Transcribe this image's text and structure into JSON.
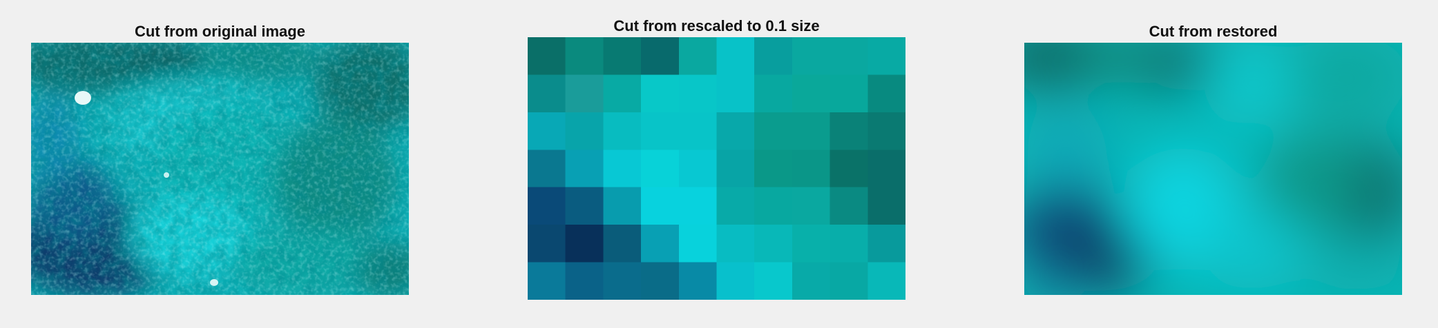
{
  "panels": [
    {
      "title": "Cut from original image"
    },
    {
      "title": "Cut from rescaled to 0.1 size"
    },
    {
      "title": "Cut from restored"
    }
  ],
  "pixel_grid": {
    "cols": 10,
    "rows": 7,
    "colors": [
      [
        "#0a6f68",
        "#0a8a7e",
        "#087a72",
        "#086a6c",
        "#0aa8a0",
        "#08c2c8",
        "#089e9e",
        "#0aa8a0",
        "#0aa8a0",
        "#08aaa4"
      ],
      [
        "#0a8c8c",
        "#1a9c9a",
        "#08aaa4",
        "#08c8c8",
        "#08c6c8",
        "#08c2c8",
        "#08a8a0",
        "#0aa89a",
        "#08a89c",
        "#088a80"
      ],
      [
        "#08a8b6",
        "#08a4aa",
        "#08bcc0",
        "#08c4c8",
        "#08c4c8",
        "#08a8aa",
        "#0a9c8e",
        "#0a9c8e",
        "#0a8278",
        "#0a7a72"
      ],
      [
        "#0a7890",
        "#08a0b4",
        "#08c8d4",
        "#08d2d8",
        "#08c8d2",
        "#08a4a6",
        "#0a9888",
        "#0a9688",
        "#0a7268",
        "#0a6e6a"
      ],
      [
        "#0a4a78",
        "#0a5c80",
        "#089cae",
        "#08d2de",
        "#08d2de",
        "#08aaa8",
        "#08a8a0",
        "#0aa8a0",
        "#0a8a82",
        "#0a6e6a"
      ],
      [
        "#0a4870",
        "#08305a",
        "#0a5c7a",
        "#08a0b4",
        "#08d2dc",
        "#08bcc2",
        "#08b8b8",
        "#08b0aa",
        "#08aeaa",
        "#089a9c"
      ],
      [
        "#0a7a9a",
        "#0a6288",
        "#0a6c8c",
        "#0a6c88",
        "#088aa6",
        "#08c0cc",
        "#08c8cc",
        "#08aaa8",
        "#08a8a4",
        "#08b8b8"
      ]
    ]
  }
}
